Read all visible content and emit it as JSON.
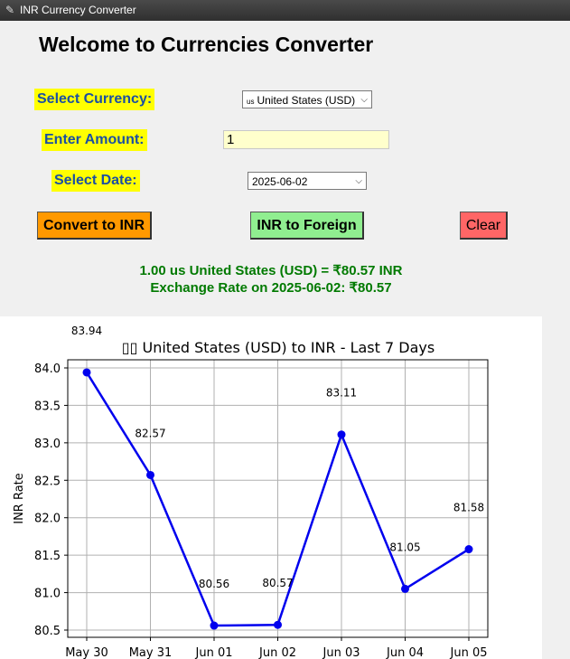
{
  "window": {
    "title": "INR Currency Converter",
    "icon": "feather-icon"
  },
  "heading": "Welcome to Currencies Converter",
  "form": {
    "currency_label": "Select Currency:",
    "currency_flag": "us",
    "currency_value": "United States (USD)",
    "amount_label": "Enter Amount:",
    "amount_value": "1",
    "date_label": "Select Date:",
    "date_value": "2025-06-02"
  },
  "buttons": {
    "convert_label": "Convert to INR",
    "reverse_label": "INR to Foreign",
    "clear_label": "Clear"
  },
  "colors": {
    "label_bg": "#ffff00",
    "label_text": "#1a4fa3",
    "convert_bg": "#ff9900",
    "reverse_bg": "#90ee90",
    "clear_bg": "#ff6666",
    "result_text": "#007a00",
    "line": "#0000ee"
  },
  "result": {
    "line1": "1.00 us United States (USD) = ₹80.57 INR",
    "line2": "Exchange Rate on 2025-06-02: ₹80.57"
  },
  "chart_data": {
    "type": "line",
    "title": "▯▯ United States (USD) to INR - Last 7 Days",
    "xlabel": "",
    "ylabel": "INR Rate",
    "categories": [
      "May 30",
      "May 31",
      "Jun 01",
      "Jun 02",
      "Jun 03",
      "Jun 04",
      "Jun 05"
    ],
    "values": [
      83.94,
      82.57,
      80.56,
      80.57,
      83.11,
      81.05,
      81.58
    ],
    "data_labels": [
      "83.94",
      "82.57",
      "80.56",
      "80.57",
      "83.11",
      "81.05",
      "81.58"
    ],
    "yticks": [
      "80.5",
      "81.0",
      "81.5",
      "82.0",
      "82.5",
      "83.0",
      "83.5",
      "84.0"
    ],
    "ylim": [
      80.45,
      84.1
    ],
    "grid": true,
    "marker": "circle"
  }
}
